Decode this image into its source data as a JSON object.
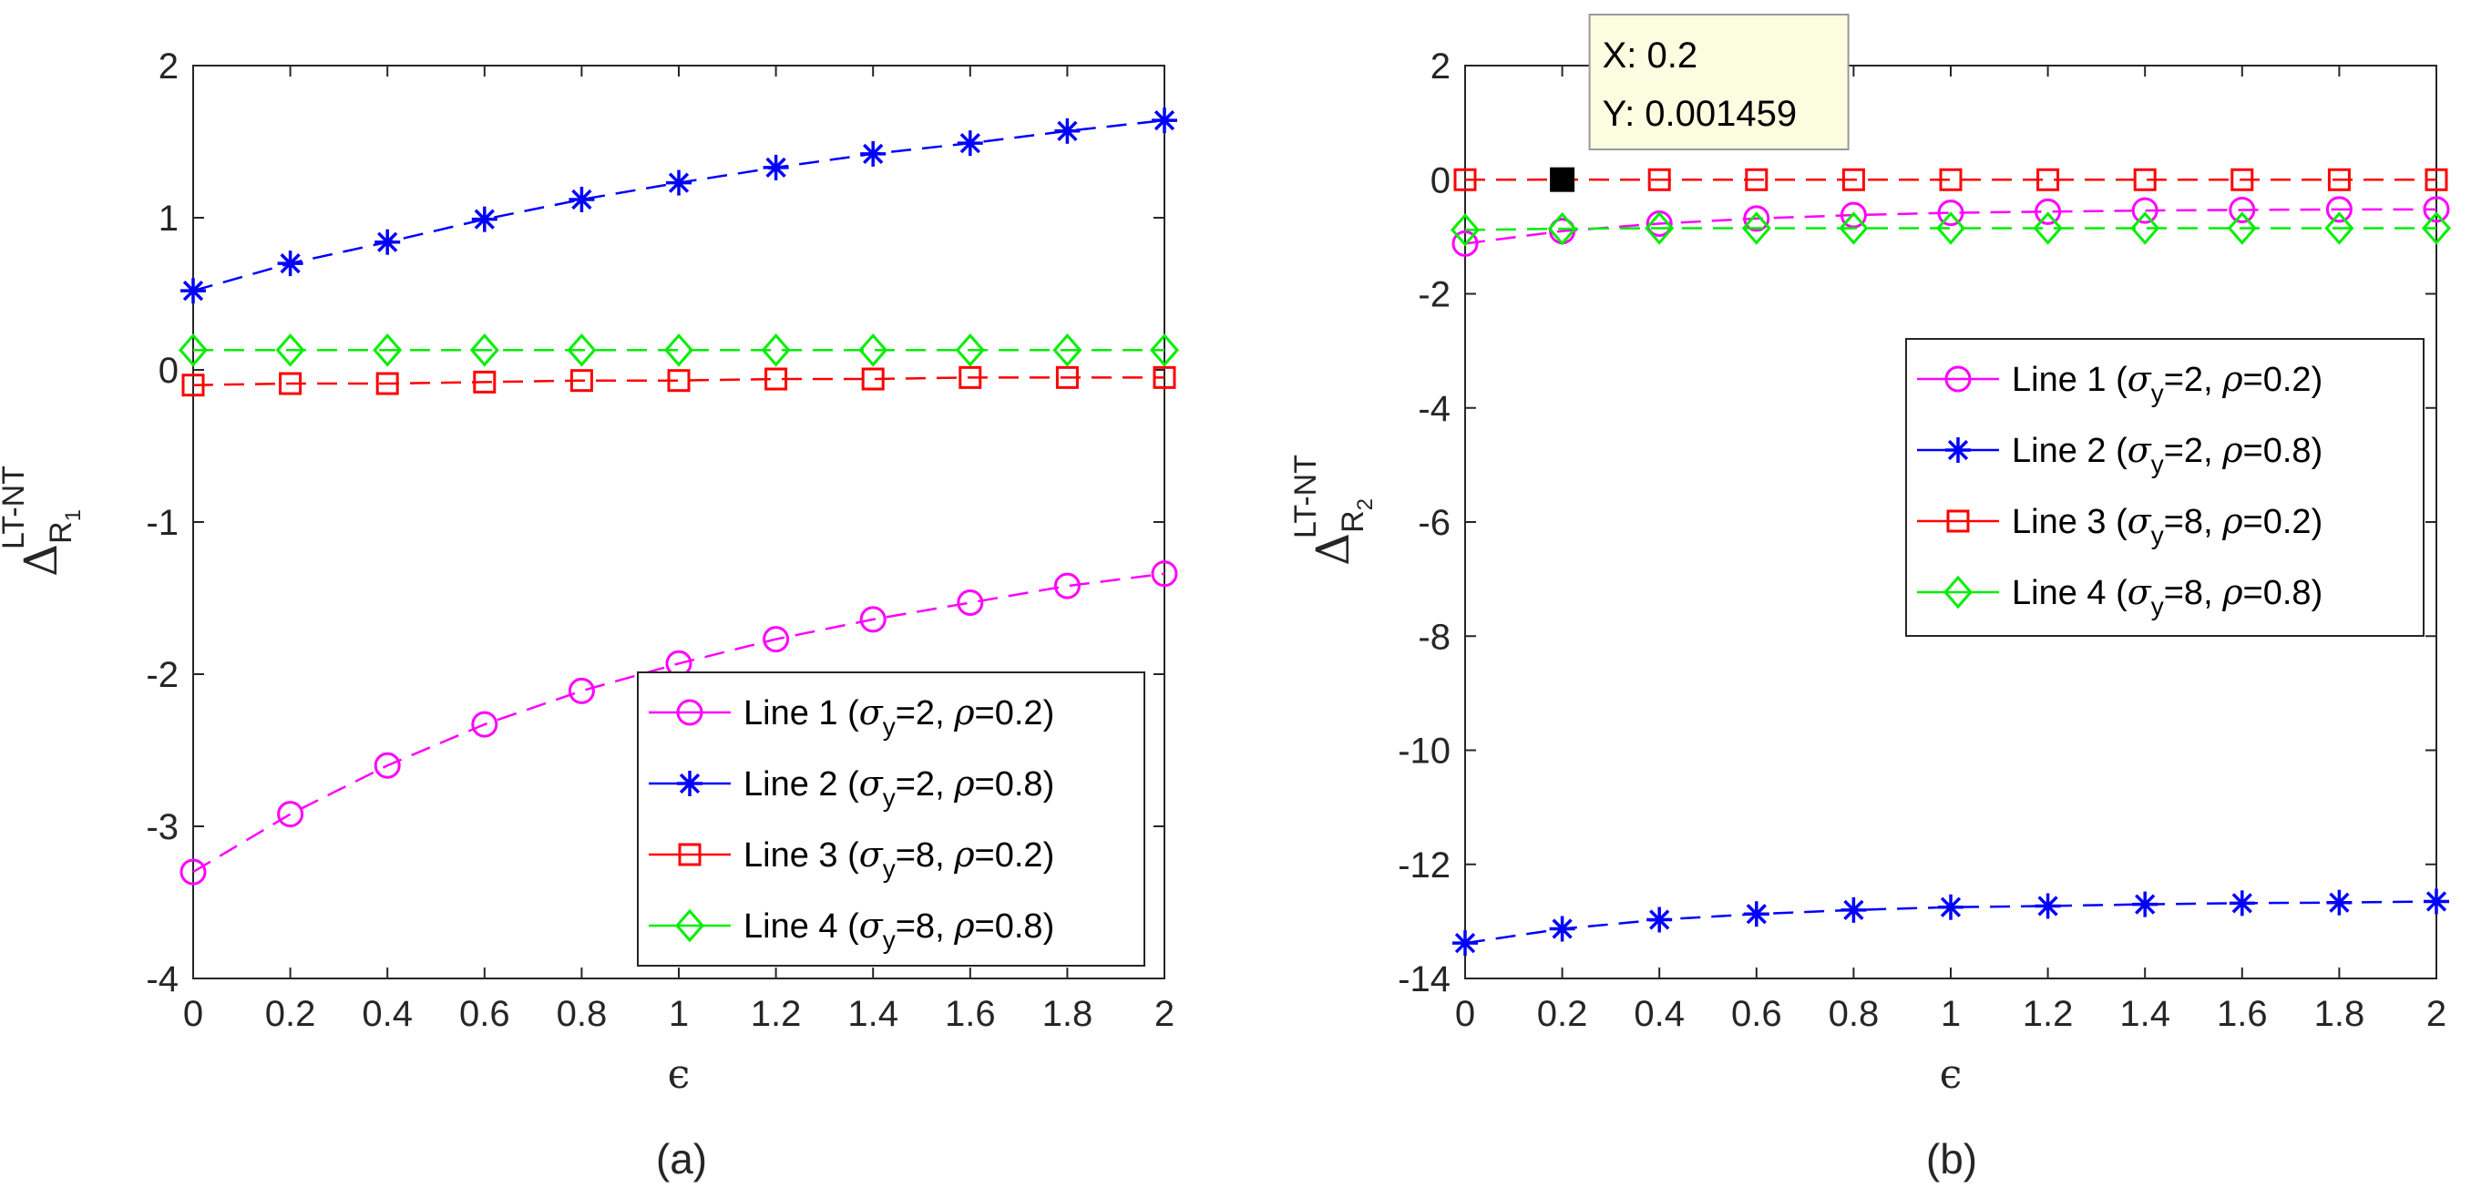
{
  "chart_data": [
    {
      "type": "line",
      "caption": "(a)",
      "xlabel": "ϵ",
      "ylabel": {
        "base": "Δ",
        "sub": "R",
        "subsub": "1",
        "sup": "LT-NT"
      },
      "xlim": [
        0,
        2
      ],
      "ylim": [
        -4,
        2
      ],
      "xticks": [
        "0",
        "0.2",
        "0.4",
        "0.6",
        "0.8",
        "1",
        "1.2",
        "1.4",
        "1.6",
        "1.8",
        "2"
      ],
      "yticks": [
        "-4",
        "-3",
        "-2",
        "-1",
        "0",
        "1",
        "2"
      ],
      "legend_position": "bottom-right",
      "x": [
        0,
        0.2,
        0.4,
        0.6,
        0.8,
        1.0,
        1.2,
        1.4,
        1.6,
        1.8,
        2.0
      ],
      "series": [
        {
          "name": "Line 1",
          "sigma": "2",
          "rho": "0.2",
          "color": "#ff00ff",
          "marker": "circle",
          "values": [
            -3.3,
            -2.92,
            -2.6,
            -2.33,
            -2.11,
            -1.93,
            -1.77,
            -1.64,
            -1.53,
            -1.42,
            -1.34
          ]
        },
        {
          "name": "Line 2",
          "sigma": "2",
          "rho": "0.8",
          "color": "#0000ff",
          "marker": "asterisk",
          "values": [
            0.52,
            0.7,
            0.84,
            0.99,
            1.12,
            1.23,
            1.33,
            1.42,
            1.49,
            1.57,
            1.64
          ]
        },
        {
          "name": "Line 3",
          "sigma": "8",
          "rho": "0.2",
          "color": "#ff0000",
          "marker": "square",
          "values": [
            -0.1,
            -0.09,
            -0.09,
            -0.08,
            -0.07,
            -0.07,
            -0.06,
            -0.06,
            -0.05,
            -0.05,
            -0.05
          ]
        },
        {
          "name": "Line 4",
          "sigma": "8",
          "rho": "0.8",
          "color": "#00ee00",
          "marker": "diamond",
          "values": [
            0.13,
            0.13,
            0.13,
            0.13,
            0.13,
            0.13,
            0.13,
            0.13,
            0.13,
            0.13,
            0.13
          ]
        }
      ]
    },
    {
      "type": "line",
      "caption": "(b)",
      "xlabel": "ϵ",
      "ylabel": {
        "base": "Δ",
        "sub": "R",
        "subsub": "2",
        "sup": "LT-NT"
      },
      "xlim": [
        0,
        2
      ],
      "ylim": [
        -14,
        2
      ],
      "xticks": [
        "0",
        "0.2",
        "0.4",
        "0.6",
        "0.8",
        "1",
        "1.2",
        "1.4",
        "1.6",
        "1.8",
        "2"
      ],
      "yticks": [
        "-14",
        "-12",
        "-10",
        "-8",
        "-6",
        "-4",
        "-2",
        "0",
        "2"
      ],
      "legend_position": "right",
      "x": [
        0,
        0.2,
        0.4,
        0.6,
        0.8,
        1.0,
        1.2,
        1.4,
        1.6,
        1.8,
        2.0
      ],
      "series": [
        {
          "name": "Line 1",
          "sigma": "2",
          "rho": "0.2",
          "color": "#ff00ff",
          "marker": "circle",
          "values": [
            -1.12,
            -0.9,
            -0.77,
            -0.68,
            -0.62,
            -0.58,
            -0.56,
            -0.54,
            -0.53,
            -0.52,
            -0.52
          ]
        },
        {
          "name": "Line 2",
          "sigma": "2",
          "rho": "0.8",
          "color": "#0000ff",
          "marker": "asterisk",
          "values": [
            -13.38,
            -13.13,
            -12.97,
            -12.87,
            -12.8,
            -12.75,
            -12.73,
            -12.7,
            -12.68,
            -12.67,
            -12.65
          ]
        },
        {
          "name": "Line 3",
          "sigma": "8",
          "rho": "0.2",
          "color": "#ff0000",
          "marker": "square",
          "values": [
            0.0,
            0.001459,
            0.0,
            0.0,
            0.0,
            0.0,
            0.0,
            0.0,
            0.0,
            0.0,
            0.0
          ]
        },
        {
          "name": "Line 4",
          "sigma": "8",
          "rho": "0.8",
          "color": "#00ee00",
          "marker": "diamond",
          "values": [
            -0.88,
            -0.86,
            -0.85,
            -0.85,
            -0.85,
            -0.85,
            -0.85,
            -0.85,
            -0.85,
            -0.85,
            -0.85
          ]
        }
      ],
      "datatip": {
        "x_label": "X: 0.2",
        "y_label": "Y: 0.001459",
        "x": 0.2,
        "y": 0.001459
      }
    }
  ]
}
